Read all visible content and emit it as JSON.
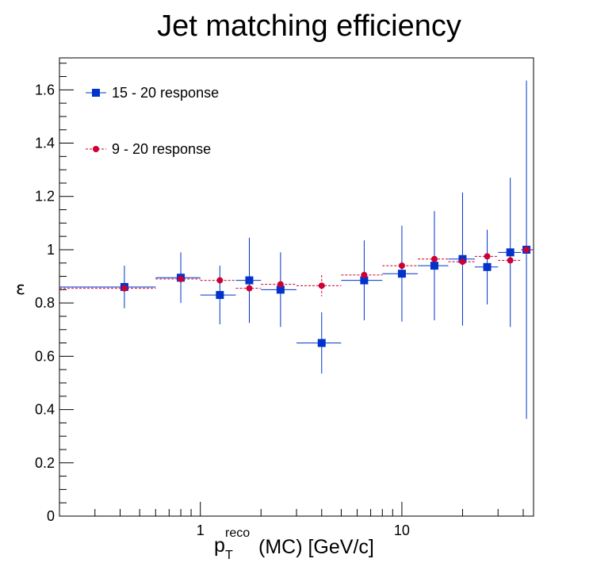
{
  "chart_data": {
    "type": "scatter",
    "title": "Jet matching efficiency",
    "ylabel": "ε",
    "xlabel": {
      "base": "p",
      "superscript": "reco",
      "subscript": "T",
      "suffix": "(MC) [GeV/c]"
    },
    "x_scale": "log",
    "xlim": [
      0.2,
      45
    ],
    "ylim": [
      0,
      1.72
    ],
    "x_tick_labels": [
      {
        "value": 1,
        "label": "1"
      },
      {
        "value": 10,
        "label": "10"
      }
    ],
    "y_tick_labels": [
      {
        "value": 0,
        "label": "0"
      },
      {
        "value": 0.2,
        "label": "0.2"
      },
      {
        "value": 0.4,
        "label": "0.4"
      },
      {
        "value": 0.6,
        "label": "0.6"
      },
      {
        "value": 0.8,
        "label": "0.8"
      },
      {
        "value": 1.0,
        "label": "1"
      },
      {
        "value": 1.2,
        "label": "1.2"
      },
      {
        "value": 1.4,
        "label": "1.4"
      },
      {
        "value": 1.6,
        "label": "1.6"
      }
    ],
    "grid": false,
    "legend_position": "top-left",
    "series": [
      {
        "name": "15 - 20 response",
        "color": "#0033cc",
        "marker": "square",
        "line": "solid",
        "points": [
          {
            "x": 0.42,
            "x_low": 0.2,
            "x_high": 0.6,
            "y": 0.86,
            "err_low": 0.08,
            "err_high": 0.08
          },
          {
            "x": 0.8,
            "x_low": 0.6,
            "x_high": 1.0,
            "y": 0.895,
            "err_low": 0.095,
            "err_high": 0.095
          },
          {
            "x": 1.25,
            "x_low": 1.0,
            "x_high": 1.5,
            "y": 0.83,
            "err_low": 0.11,
            "err_high": 0.11
          },
          {
            "x": 1.75,
            "x_low": 1.5,
            "x_high": 2.0,
            "y": 0.885,
            "err_low": 0.16,
            "err_high": 0.16
          },
          {
            "x": 2.5,
            "x_low": 2.0,
            "x_high": 3.0,
            "y": 0.85,
            "err_low": 0.14,
            "err_high": 0.14
          },
          {
            "x": 4.0,
            "x_low": 3.0,
            "x_high": 5.0,
            "y": 0.65,
            "err_low": 0.115,
            "err_high": 0.115
          },
          {
            "x": 6.5,
            "x_low": 5.0,
            "x_high": 8.0,
            "y": 0.885,
            "err_low": 0.15,
            "err_high": 0.15
          },
          {
            "x": 10.0,
            "x_low": 8.0,
            "x_high": 12.0,
            "y": 0.91,
            "err_low": 0.18,
            "err_high": 0.18
          },
          {
            "x": 14.5,
            "x_low": 12.0,
            "x_high": 17.0,
            "y": 0.94,
            "err_low": 0.205,
            "err_high": 0.205
          },
          {
            "x": 20.0,
            "x_low": 17.0,
            "x_high": 23.0,
            "y": 0.965,
            "err_low": 0.25,
            "err_high": 0.25
          },
          {
            "x": 26.5,
            "x_low": 23.0,
            "x_high": 30.0,
            "y": 0.935,
            "err_low": 0.14,
            "err_high": 0.14
          },
          {
            "x": 34.5,
            "x_low": 30.0,
            "x_high": 39.0,
            "y": 0.99,
            "err_low": 0.28,
            "err_high": 0.28
          },
          {
            "x": 41.5,
            "x_low": 39.0,
            "x_high": 45.0,
            "y": 1.0,
            "err_low": 0.635,
            "err_high": 0.635
          }
        ]
      },
      {
        "name": "9 - 20 response",
        "color": "#cc0033",
        "marker": "circle",
        "line": "dashed",
        "points": [
          {
            "x": 0.42,
            "x_low": 0.2,
            "x_high": 0.6,
            "y": 0.855,
            "err_low": 0.0,
            "err_high": 0.0
          },
          {
            "x": 0.8,
            "x_low": 0.6,
            "x_high": 1.0,
            "y": 0.89,
            "err_low": 0.0,
            "err_high": 0.0
          },
          {
            "x": 1.25,
            "x_low": 1.0,
            "x_high": 1.5,
            "y": 0.885,
            "err_low": 0.0,
            "err_high": 0.0
          },
          {
            "x": 1.75,
            "x_low": 1.5,
            "x_high": 2.0,
            "y": 0.855,
            "err_low": 0.0,
            "err_high": 0.0
          },
          {
            "x": 2.5,
            "x_low": 2.0,
            "x_high": 3.0,
            "y": 0.87,
            "err_low": 0.0,
            "err_high": 0.0
          },
          {
            "x": 4.0,
            "x_low": 3.0,
            "x_high": 5.0,
            "y": 0.865,
            "err_low": 0.04,
            "err_high": 0.04
          },
          {
            "x": 6.5,
            "x_low": 5.0,
            "x_high": 8.0,
            "y": 0.905,
            "err_low": 0.0,
            "err_high": 0.0
          },
          {
            "x": 10.0,
            "x_low": 8.0,
            "x_high": 12.0,
            "y": 0.94,
            "err_low": 0.0,
            "err_high": 0.0
          },
          {
            "x": 14.5,
            "x_low": 12.0,
            "x_high": 17.0,
            "y": 0.965,
            "err_low": 0.0,
            "err_high": 0.0
          },
          {
            "x": 20.0,
            "x_low": 17.0,
            "x_high": 23.0,
            "y": 0.955,
            "err_low": 0.0,
            "err_high": 0.0
          },
          {
            "x": 26.5,
            "x_low": 23.0,
            "x_high": 30.0,
            "y": 0.975,
            "err_low": 0.0,
            "err_high": 0.0
          },
          {
            "x": 34.5,
            "x_low": 30.0,
            "x_high": 39.0,
            "y": 0.96,
            "err_low": 0.0,
            "err_high": 0.0
          },
          {
            "x": 41.5,
            "x_low": 39.0,
            "x_high": 45.0,
            "y": 1.0,
            "err_low": 0.0,
            "err_high": 0.0
          }
        ]
      }
    ]
  }
}
